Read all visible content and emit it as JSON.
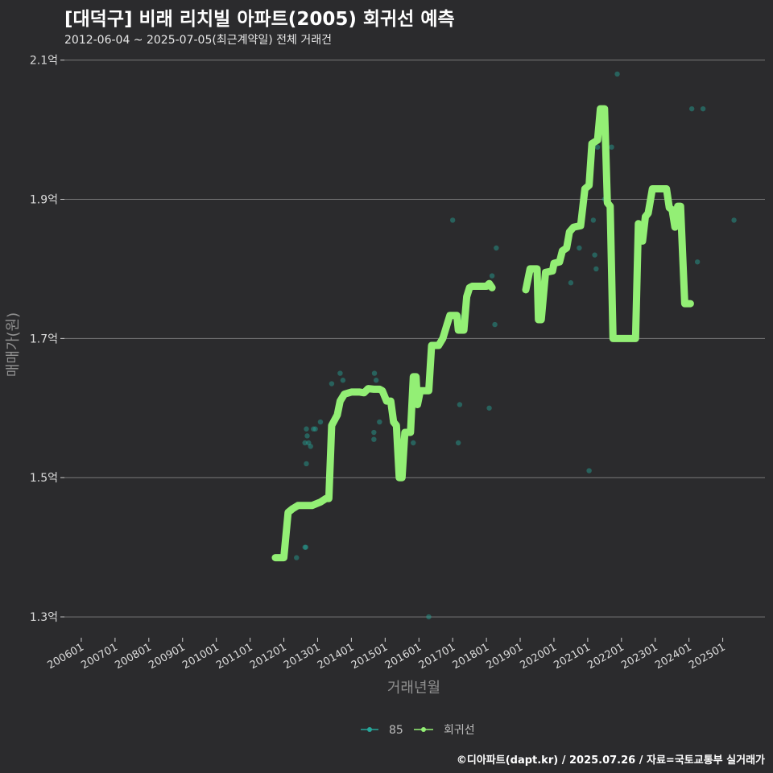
{
  "chart_data": {
    "type": "line",
    "title": "[대덕구] 비래 리치빌 아파트(2005) 회귀선 예측",
    "subtitle": "2012-06-04 ~ 2025-07-05(최근계약일) 전체 거래건",
    "xlabel": "거래년월",
    "ylabel": "매매가(원)",
    "ylim": [
      1.27,
      2.11
    ],
    "x_range_months": [
      -6,
      243
    ],
    "y_ticks": [
      {
        "value": 2.1,
        "label": "2.1억"
      },
      {
        "value": 1.9,
        "label": "1.9억"
      },
      {
        "value": 1.7,
        "label": "1.7억"
      },
      {
        "value": 1.5,
        "label": "1.5억"
      },
      {
        "value": 1.3,
        "label": "1.3억"
      }
    ],
    "x_ticks": [
      {
        "m": 0,
        "label": "200601"
      },
      {
        "m": 12,
        "label": "200701"
      },
      {
        "m": 24,
        "label": "200801"
      },
      {
        "m": 36,
        "label": "200901"
      },
      {
        "m": 48,
        "label": "201001"
      },
      {
        "m": 60,
        "label": "201101"
      },
      {
        "m": 72,
        "label": "201201"
      },
      {
        "m": 84,
        "label": "201301"
      },
      {
        "m": 96,
        "label": "201401"
      },
      {
        "m": 108,
        "label": "201501"
      },
      {
        "m": 120,
        "label": "201601"
      },
      {
        "m": 132,
        "label": "201701"
      },
      {
        "m": 144,
        "label": "201801"
      },
      {
        "m": 156,
        "label": "201901"
      },
      {
        "m": 168,
        "label": "202001"
      },
      {
        "m": 180,
        "label": "202101"
      },
      {
        "m": 192,
        "label": "202201"
      },
      {
        "m": 204,
        "label": "202301"
      },
      {
        "m": 216,
        "label": "202401"
      },
      {
        "m": 228,
        "label": "202501"
      }
    ],
    "series": [
      {
        "name": "85",
        "kind": "scatter",
        "color": "#26a69a",
        "points": [
          [
            76.5,
            1.385
          ],
          [
            79.5,
            1.4
          ],
          [
            79.8,
            1.4
          ],
          [
            79.5,
            1.55
          ],
          [
            80,
            1.57
          ],
          [
            80.3,
            1.56
          ],
          [
            80.8,
            1.55
          ],
          [
            80,
            1.52
          ],
          [
            81.5,
            1.545
          ],
          [
            82.5,
            1.57
          ],
          [
            83.2,
            1.57
          ],
          [
            85,
            1.58
          ],
          [
            89,
            1.635
          ],
          [
            92,
            1.65
          ],
          [
            93,
            1.64
          ],
          [
            104,
            1.565
          ],
          [
            104,
            1.555
          ],
          [
            104.2,
            1.65
          ],
          [
            104.8,
            1.64
          ],
          [
            106,
            1.58
          ],
          [
            118,
            1.55
          ],
          [
            123.5,
            1.3
          ],
          [
            128,
            1.7
          ],
          [
            132,
            1.87
          ],
          [
            134,
            1.55
          ],
          [
            134.5,
            1.605
          ],
          [
            135,
            1.73
          ],
          [
            145,
            1.6
          ],
          [
            146,
            1.79
          ],
          [
            147,
            1.72
          ],
          [
            147.5,
            1.83
          ],
          [
            174,
            1.78
          ],
          [
            177,
            1.83
          ],
          [
            180.5,
            1.51
          ],
          [
            182,
            1.87
          ],
          [
            182.5,
            1.82
          ],
          [
            183,
            1.8
          ],
          [
            183.5,
            1.975
          ],
          [
            186,
            1.9
          ],
          [
            188.5,
            1.975
          ],
          [
            190.5,
            2.08
          ],
          [
            217,
            2.03
          ],
          [
            219,
            1.81
          ],
          [
            221,
            2.03
          ],
          [
            232,
            1.87
          ]
        ]
      },
      {
        "name": "회귀선",
        "kind": "line",
        "color": "#93ef75",
        "points": [
          [
            69,
            1.385
          ],
          [
            72,
            1.385
          ],
          [
            73.5,
            1.45
          ],
          [
            75,
            1.455
          ],
          [
            77,
            1.46
          ],
          [
            80,
            1.46
          ],
          [
            82,
            1.46
          ],
          [
            85,
            1.465
          ],
          [
            87,
            1.47
          ],
          [
            88,
            1.47
          ],
          [
            89,
            1.575
          ],
          [
            91,
            1.59
          ],
          [
            92,
            1.61
          ],
          [
            93.5,
            1.62
          ],
          [
            96,
            1.623
          ],
          [
            99,
            1.623
          ],
          [
            100.5,
            1.622
          ],
          [
            102,
            1.628
          ],
          [
            104,
            1.627
          ],
          [
            106,
            1.627
          ],
          [
            107,
            1.625
          ],
          [
            108.5,
            1.61
          ],
          [
            110,
            1.61
          ],
          [
            111,
            1.58
          ],
          [
            112,
            1.575
          ],
          [
            113,
            1.5
          ],
          [
            114,
            1.5
          ],
          [
            115,
            1.565
          ],
          [
            117,
            1.565
          ],
          [
            118,
            1.645
          ],
          [
            119,
            1.645
          ],
          [
            119.5,
            1.605
          ],
          [
            120.5,
            1.625
          ],
          [
            123.5,
            1.625
          ],
          [
            124.5,
            1.69
          ],
          [
            127,
            1.69
          ],
          [
            128.5,
            1.7
          ],
          [
            130,
            1.72
          ],
          [
            131,
            1.733
          ],
          [
            133.5,
            1.733
          ],
          [
            134,
            1.712
          ],
          [
            136,
            1.712
          ],
          [
            137,
            1.76
          ],
          [
            138,
            1.773
          ],
          [
            139,
            1.775
          ],
          [
            144,
            1.775
          ],
          [
            145,
            1.779
          ],
          [
            146,
            1.773
          ],
          [
            null,
            null
          ],
          [
            158,
            1.77
          ],
          [
            159.5,
            1.8
          ],
          [
            162,
            1.8
          ],
          [
            162.5,
            1.727
          ],
          [
            163.5,
            1.727
          ],
          [
            165,
            1.795
          ],
          [
            167.5,
            1.797
          ],
          [
            168,
            1.808
          ],
          [
            170,
            1.81
          ],
          [
            171,
            1.826
          ],
          [
            172.5,
            1.83
          ],
          [
            173.5,
            1.853
          ],
          [
            175,
            1.86
          ],
          [
            177.5,
            1.862
          ],
          [
            179,
            1.915
          ],
          [
            180.5,
            1.92
          ],
          [
            181.5,
            1.98
          ],
          [
            183.5,
            1.985
          ],
          [
            184.5,
            2.03
          ],
          [
            186,
            2.03
          ],
          [
            187,
            1.895
          ],
          [
            188,
            1.89
          ],
          [
            189,
            1.7
          ],
          [
            197,
            1.7
          ],
          [
            198,
            1.865
          ],
          [
            199.5,
            1.84
          ],
          [
            200.5,
            1.875
          ],
          [
            201.5,
            1.88
          ],
          [
            203,
            1.915
          ],
          [
            208,
            1.915
          ],
          [
            209,
            1.888
          ],
          [
            210,
            1.885
          ],
          [
            211,
            1.86
          ],
          [
            212,
            1.89
          ],
          [
            213,
            1.89
          ],
          [
            214.5,
            1.75
          ],
          [
            216.5,
            1.75
          ]
        ]
      }
    ],
    "legend": {
      "position": "bottom",
      "items": [
        {
          "label": "85",
          "color": "#26a69a"
        },
        {
          "label": "회귀선",
          "color": "#93ef75"
        }
      ]
    },
    "colors": {
      "background": "#2b2b2d",
      "grid": "#7a7a7a",
      "text": "#dcdcdc"
    }
  },
  "footer": "©디아파트(dapt.kr) / 2025.07.26 / 자료=국토교통부 실거래가"
}
